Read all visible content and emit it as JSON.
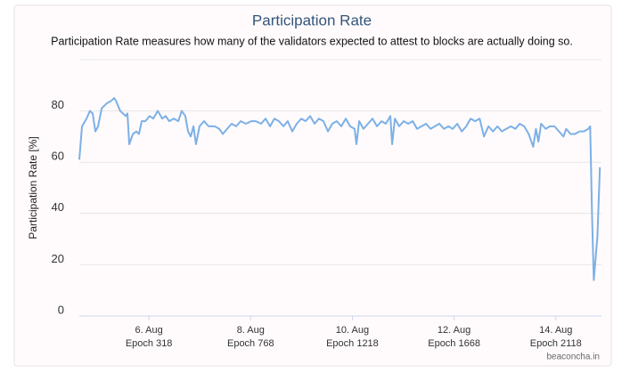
{
  "chart_data": {
    "type": "line",
    "title": "Participation Rate",
    "subtitle": "Participation Rate measures how many of the validators expected to attest to blocks are actually doing so.",
    "y_label": "Participation Rate [%]",
    "credits": "beaconcha.in",
    "x": [
      10,
      22,
      42,
      57,
      69,
      81,
      93,
      109,
      132,
      152,
      164,
      172,
      191,
      215,
      223,
      231,
      247,
      262,
      274,
      286,
      302,
      321,
      337,
      357,
      377,
      392,
      408,
      428,
      448,
      463,
      479,
      491,
      503,
      515,
      526,
      542,
      562,
      582,
      609,
      629,
      645,
      664,
      684,
      704,
      724,
      747,
      771,
      791,
      814,
      834,
      854,
      873,
      893,
      913,
      932,
      952,
      972,
      992,
      1011,
      1031,
      1051,
      1070,
      1090,
      1110,
      1129,
      1149,
      1169,
      1189,
      1208,
      1228,
      1236,
      1248,
      1267,
      1287,
      1307,
      1327,
      1347,
      1366,
      1386,
      1394,
      1406,
      1425,
      1445,
      1465,
      1485,
      1504,
      1524,
      1544,
      1564,
      1583,
      1603,
      1623,
      1643,
      1662,
      1682,
      1702,
      1722,
      1741,
      1761,
      1781,
      1800,
      1820,
      1840,
      1860,
      1879,
      1899,
      1919,
      1939,
      1958,
      1978,
      1998,
      2018,
      2030,
      2041,
      2053,
      2073,
      2092,
      2112,
      2132,
      2152,
      2164,
      2183,
      2203,
      2223,
      2242,
      2262,
      2270,
      2278,
      2286,
      2302,
      2313
    ],
    "series": [
      {
        "name": "Participation Rate",
        "color": "#7cb0e6",
        "values": [
          61,
          74,
          77,
          80,
          79,
          72,
          74,
          81,
          83,
          84,
          85,
          84,
          80,
          78,
          79,
          67,
          71,
          72,
          71,
          76,
          76,
          78,
          77,
          80,
          77,
          78,
          76,
          77,
          76,
          80,
          78,
          72,
          70,
          74,
          67,
          74,
          76,
          74,
          74,
          73,
          71,
          73,
          75,
          74,
          76,
          75,
          76,
          76,
          75,
          77,
          74,
          77,
          76,
          74,
          76,
          72,
          75,
          77,
          76,
          78,
          75,
          77,
          76,
          72,
          75,
          76,
          74,
          77,
          74,
          73,
          67,
          76,
          73,
          75,
          77,
          74,
          76,
          75,
          78,
          67,
          77,
          74,
          76,
          75,
          76,
          73,
          74,
          75,
          73,
          74,
          75,
          73,
          74,
          73,
          75,
          72,
          74,
          77,
          76,
          77,
          70,
          74,
          72,
          74,
          72,
          73,
          74,
          73,
          75,
          74,
          71,
          66,
          73,
          68,
          75,
          73,
          74,
          74,
          72,
          70,
          73,
          71,
          71,
          72,
          72,
          73,
          74,
          40,
          14,
          31,
          58
        ]
      }
    ],
    "xlim": [
      10,
      2320
    ],
    "xticks": [
      {
        "value": 318,
        "label": "6. Aug",
        "epoch_label": "Epoch 318"
      },
      {
        "value": 768,
        "label": "8. Aug",
        "epoch_label": "Epoch 768"
      },
      {
        "value": 1218,
        "label": "10. Aug",
        "epoch_label": "Epoch 1218"
      },
      {
        "value": 1668,
        "label": "12. Aug",
        "epoch_label": "Epoch 1668"
      },
      {
        "value": 2118,
        "label": "14. Aug",
        "epoch_label": "Epoch 2118"
      }
    ],
    "ylim": [
      0,
      100
    ],
    "yticks": [
      0,
      20,
      40,
      60,
      80
    ],
    "grid": true
  }
}
